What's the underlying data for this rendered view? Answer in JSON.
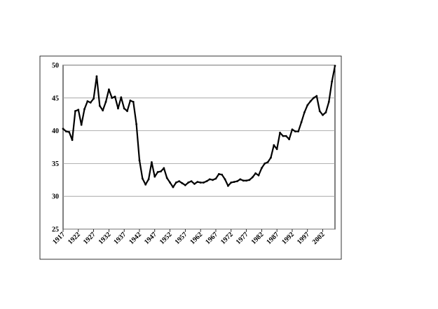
{
  "chart_data": {
    "type": "line",
    "color": "#000000",
    "grid": true,
    "x": [
      1917,
      1918,
      1919,
      1920,
      1921,
      1922,
      1923,
      1924,
      1925,
      1926,
      1927,
      1928,
      1929,
      1930,
      1931,
      1932,
      1933,
      1934,
      1935,
      1936,
      1937,
      1938,
      1939,
      1940,
      1941,
      1942,
      1943,
      1944,
      1945,
      1946,
      1947,
      1948,
      1949,
      1950,
      1951,
      1952,
      1953,
      1954,
      1955,
      1956,
      1957,
      1958,
      1959,
      1960,
      1961,
      1962,
      1963,
      1964,
      1965,
      1966,
      1967,
      1968,
      1969,
      1970,
      1971,
      1972,
      1973,
      1974,
      1975,
      1976,
      1977,
      1978,
      1979,
      1980,
      1981,
      1982,
      1983,
      1984,
      1985,
      1986,
      1987,
      1988,
      1989,
      1990,
      1991,
      1992,
      1993,
      1994,
      1995,
      1996,
      1997,
      1998,
      1999,
      2000,
      2001,
      2002,
      2003,
      2004,
      2005,
      2006
    ],
    "values": [
      40.3,
      39.9,
      39.8,
      38.6,
      43.0,
      43.2,
      40.9,
      43.3,
      44.5,
      44.3,
      44.9,
      48.3,
      43.8,
      43.1,
      44.4,
      46.3,
      45.0,
      45.2,
      43.4,
      45.1,
      43.4,
      43.0,
      44.6,
      44.4,
      41.0,
      35.5,
      32.7,
      31.8,
      32.6,
      35.2,
      33.0,
      33.7,
      33.8,
      34.3,
      32.8,
      32.1,
      31.4,
      32.1,
      32.3,
      32.0,
      31.7,
      32.1,
      32.3,
      31.9,
      32.2,
      32.1,
      32.1,
      32.3,
      32.6,
      32.5,
      32.7,
      33.4,
      33.3,
      32.6,
      31.6,
      32.1,
      32.2,
      32.3,
      32.6,
      32.4,
      32.4,
      32.5,
      32.9,
      33.5,
      33.2,
      34.3,
      35.0,
      35.2,
      35.9,
      37.8,
      37.2,
      39.7,
      39.2,
      39.2,
      38.7,
      40.2,
      39.9,
      39.9,
      41.3,
      42.8,
      43.9,
      44.5,
      45.0,
      45.3,
      43.0,
      42.4,
      42.8,
      44.4,
      47.5,
      49.9
    ],
    "xlim": [
      1917,
      2006
    ],
    "xticks": [
      1917,
      1922,
      1927,
      1932,
      1937,
      1942,
      1947,
      1952,
      1957,
      1962,
      1967,
      1972,
      1977,
      1982,
      1987,
      1992,
      1997,
      2002
    ],
    "ylim": [
      25,
      50
    ],
    "yticks": [
      25,
      30,
      35,
      40,
      45,
      50
    ]
  }
}
